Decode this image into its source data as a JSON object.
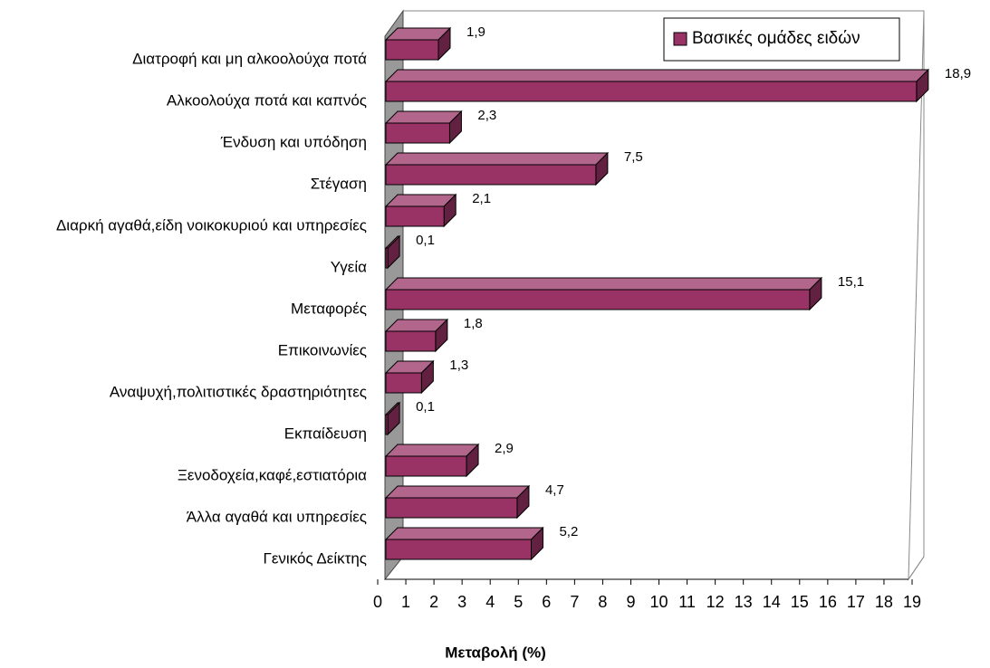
{
  "chart_data": {
    "type": "bar",
    "orientation": "horizontal",
    "x_axis_label": "Μεταβολή (%)",
    "categories": [
      "Διατροφή και μη αλκοολούχα ποτά",
      "Αλκοολούχα ποτά και καπνός",
      "Ένδυση και υπόδηση",
      "Στέγαση",
      "Διαρκή αγαθά,είδη νοικοκυριού και υπηρεσίες",
      "Υγεία",
      "Μεταφορές",
      "Επικοινωνίες",
      "Αναψυχή,πολιτιστικές δραστηριότητες",
      "Εκπαίδευση",
      "Ξενοδοχεία,καφέ,εστιατόρια",
      "Άλλα αγαθά και υπηρεσίες",
      "Γενικός Δείκτης"
    ],
    "series": [
      {
        "name": "Βασικές ομάδες ειδών",
        "color": "#993366",
        "values": [
          1.9,
          18.9,
          2.3,
          7.5,
          2.1,
          0.1,
          15.1,
          1.8,
          1.3,
          0.1,
          2.9,
          4.7,
          5.2
        ],
        "value_labels": [
          "1,9",
          "18,9",
          "2,3",
          "7,5",
          "2,1",
          "0,1",
          "15,1",
          "1,8",
          "1,3",
          "0,1",
          "2,9",
          "4,7",
          "5,2"
        ]
      }
    ],
    "xlim": [
      0,
      19
    ],
    "xticks": [
      0,
      1,
      2,
      3,
      4,
      5,
      6,
      7,
      8,
      9,
      10,
      11,
      12,
      13,
      14,
      15,
      16,
      17,
      18,
      19
    ],
    "legend": "top-right"
  }
}
